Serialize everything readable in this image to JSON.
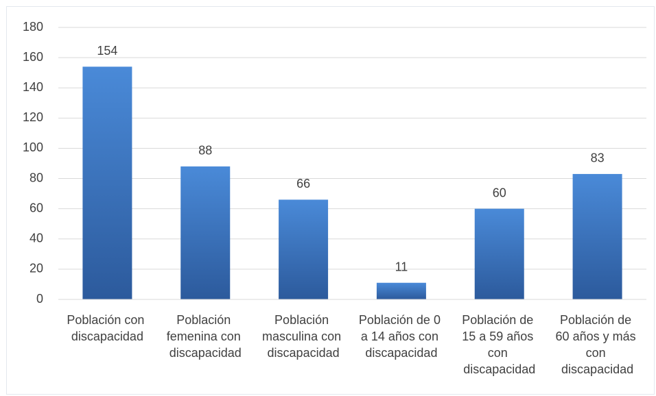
{
  "chart_data": {
    "type": "bar",
    "categories": [
      "Población con discapacidad",
      "Población femenina con discapacidad",
      "Población masculina con discapacidad",
      "Población de 0 a 14 años con discapacidad",
      "Población de 15 a 59 años con discapacidad",
      "Población de 60 años y más con discapacidad"
    ],
    "values": [
      154,
      88,
      66,
      11,
      60,
      83
    ],
    "color": "#3b73c0",
    "ylim": [
      0,
      180
    ],
    "yticks": [
      0,
      20,
      40,
      60,
      80,
      100,
      120,
      140,
      160,
      180
    ],
    "grid": true
  }
}
